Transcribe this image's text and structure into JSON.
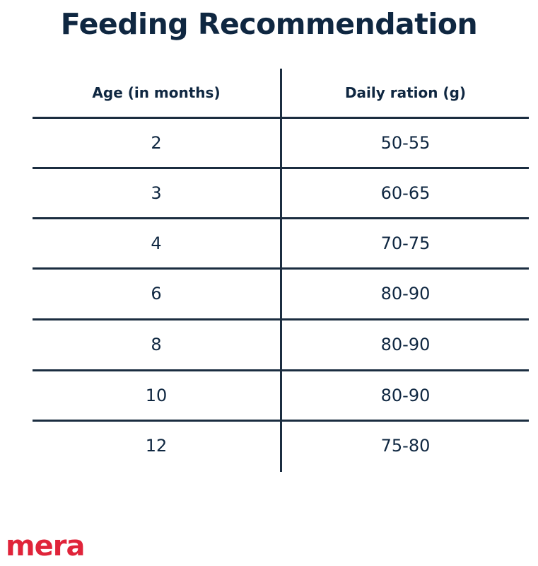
{
  "title": "Feeding Recommendation",
  "table": {
    "headers": [
      "Age (in months)",
      "Daily ration (g)"
    ],
    "rows": [
      [
        "2",
        "50-55"
      ],
      [
        "3",
        "60-65"
      ],
      [
        "4",
        "70-75"
      ],
      [
        "6",
        "80-90"
      ],
      [
        "8",
        "80-90"
      ],
      [
        "10",
        "80-90"
      ],
      [
        "12",
        "75-80"
      ]
    ]
  },
  "brand": {
    "name": "mera",
    "color": "#e0243a"
  },
  "colors": {
    "text": "#0f2741",
    "rule": "#1b2d40"
  }
}
